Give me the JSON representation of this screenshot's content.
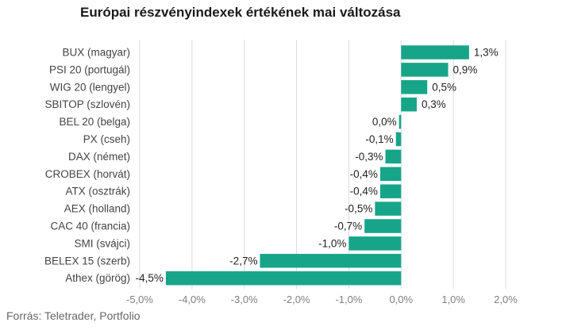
{
  "header": {
    "title": "Európai részvényindexek értékének mai változása"
  },
  "footer": {
    "source": "Forrás: Teletrader, Portfolio"
  },
  "colors": {
    "bar": "#17a589",
    "grid": "#dcdcdc",
    "text": "#444444",
    "axis_text": "#808080"
  },
  "chart_data": {
    "type": "bar",
    "orientation": "horizontal",
    "title": "Európai részvényindexek értékének mai változása",
    "categories": [
      "BUX (magyar)",
      "PSI 20 (portugál)",
      "WIG 20 (lengyel)",
      "SBITOP (szlovén)",
      "BEL 20 (belga)",
      "PX (cseh)",
      "DAX (német)",
      "CROBEX (horvát)",
      "ATX (osztrák)",
      "AEX (holland)",
      "CAC 40 (francia)",
      "SMI (svájci)",
      "BELEX 15 (szerb)",
      "Athex (görög)"
    ],
    "values": [
      1.3,
      0.9,
      0.5,
      0.3,
      -0.04,
      -0.1,
      -0.3,
      -0.4,
      -0.4,
      -0.5,
      -0.7,
      -1.0,
      -2.7,
      -4.5
    ],
    "data_labels": [
      "1,3%",
      "0,9%",
      "0,5%",
      "0,3%",
      "0,0%",
      "-0,1%",
      "-0,3%",
      "-0,4%",
      "-0,4%",
      "-0,5%",
      "-0,7%",
      "-1,0%",
      "-2,7%",
      "-4,5%"
    ],
    "xlim": [
      -5.0,
      2.0
    ],
    "xticks": [
      -5.0,
      -4.0,
      -3.0,
      -2.0,
      -1.0,
      0.0,
      1.0,
      2.0
    ],
    "xtick_labels": [
      "-5,0%",
      "-4,0%",
      "-3,0%",
      "-2,0%",
      "-1,0%",
      "0,0%",
      "1,0%",
      "2,0%"
    ],
    "xlabel": "",
    "ylabel": "",
    "grid": true,
    "legend": false
  }
}
